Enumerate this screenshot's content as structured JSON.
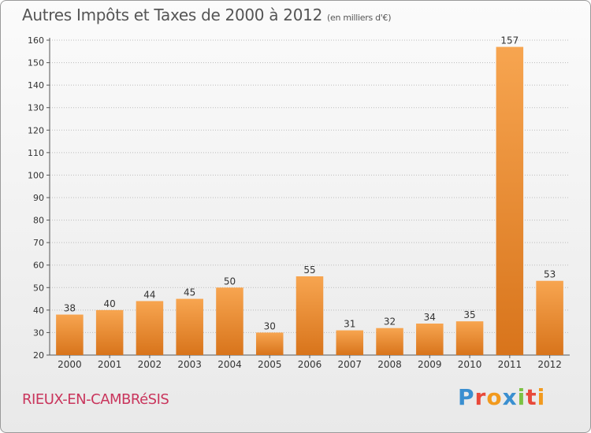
{
  "header": {
    "title": "Autres Impôts et Taxes de 2000 à 2012",
    "unit": "(en milliers d'€)"
  },
  "footer": {
    "town": "RIEUX-EN-CAMBRéSIS",
    "logo_letters": [
      "P",
      "r",
      "o",
      "x",
      "i",
      "t",
      "i"
    ],
    "logo_colors": [
      "#3a8fd0",
      "#e8493a",
      "#f29a1e",
      "#3a8fd0",
      "#7cc242",
      "#e8493a",
      "#f29a1e"
    ]
  },
  "colors": {
    "bar_light": "#f7a550",
    "bar_dark": "#d8741b",
    "axis": "#555555",
    "grid": "#bbbbbb"
  },
  "chart_data": {
    "type": "bar",
    "title": "Autres Impôts et Taxes de 2000 à 2012",
    "subtitle": "(en milliers d'€)",
    "categories": [
      "2000",
      "2001",
      "2002",
      "2003",
      "2004",
      "2005",
      "2006",
      "2007",
      "2008",
      "2009",
      "2010",
      "2011",
      "2012"
    ],
    "values": [
      38,
      40,
      44,
      45,
      50,
      30,
      55,
      31,
      32,
      34,
      35,
      157,
      53
    ],
    "ylim": [
      20,
      160
    ],
    "yticks": [
      20,
      30,
      40,
      50,
      60,
      70,
      80,
      90,
      100,
      110,
      120,
      130,
      140,
      150,
      160
    ],
    "grid": true,
    "xlabel": "",
    "ylabel": ""
  }
}
